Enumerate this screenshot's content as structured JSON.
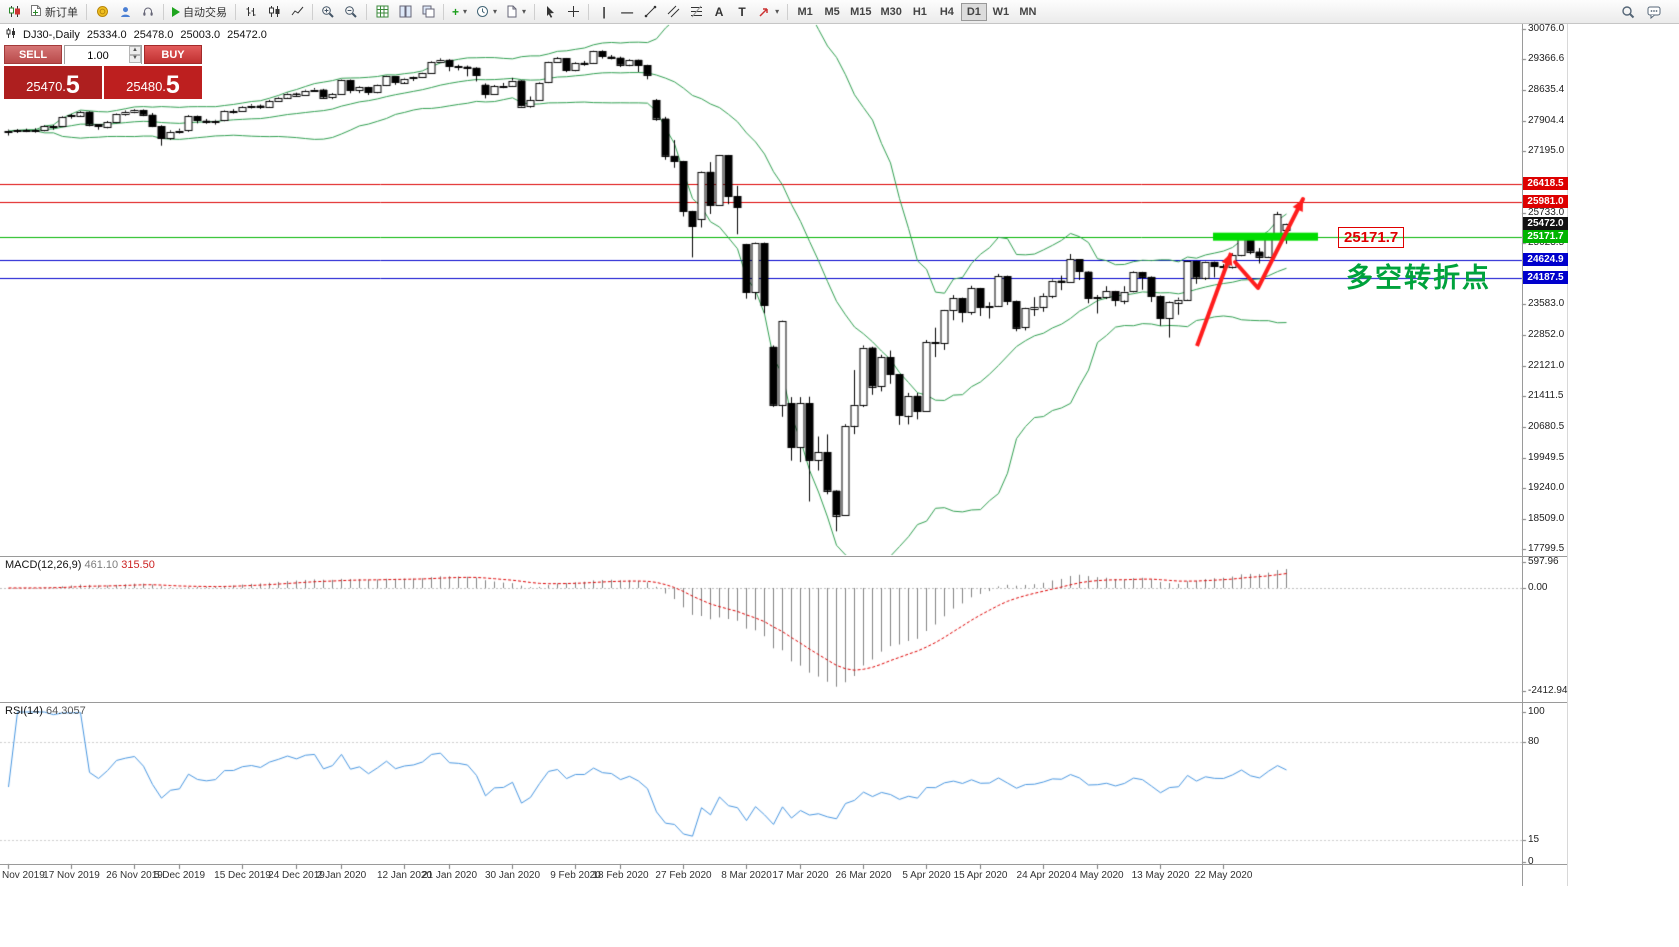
{
  "toolbar": {
    "new_order_label": "新订单",
    "autotrading_label": "自动交易",
    "timeframes": [
      "M1",
      "M5",
      "M15",
      "M30",
      "H1",
      "H4",
      "D1",
      "W1",
      "MN"
    ],
    "active_timeframe": "D1",
    "icon_names": [
      "chart-window-icon",
      "new-order-icon",
      "deposit-icon",
      "profile-icon",
      "support-icon",
      "autotrading-play-icon",
      "bar-chart-icon",
      "candlestick-chart-icon",
      "line-chart-icon",
      "zoom-in-icon",
      "zoom-out-icon",
      "indicators-grid-icon",
      "tile-windows-icon",
      "cascade-windows-icon",
      "new-chart-icon",
      "period-clock-icon",
      "templates-icon",
      "cursor-icon",
      "crosshair-icon",
      "vertical-line-icon",
      "horizontal-line-icon",
      "trendline-icon",
      "channel-icon",
      "fibonacci-icon",
      "text-icon",
      "text-label-icon",
      "shapes-arrow-icon",
      "search-icon",
      "chat-icon"
    ]
  },
  "chart_header": {
    "symbol_period": "DJ30-,Daily",
    "open": "25334.0",
    "high": "25478.0",
    "low": "25003.0",
    "close": "25472.0"
  },
  "one_click": {
    "sell_label": "SELL",
    "buy_label": "BUY",
    "volume": "1.00",
    "sell_price": "25470.5",
    "sell_price_main": "25470.",
    "sell_price_pip": "5",
    "buy_price": "25480.5",
    "buy_price_main": "25480.",
    "buy_price_pip": "5"
  },
  "indicators": {
    "macd": {
      "label": "MACD(12,26,9)",
      "value_main": "461.10",
      "value_signal": "315.50",
      "axis_ticks": [
        597.96,
        0,
        -2412.94
      ]
    },
    "rsi": {
      "label": "RSI(14)",
      "value": "64.3057",
      "axis_ticks": [
        100,
        80,
        15,
        0
      ],
      "levels": [
        80,
        15
      ]
    }
  },
  "chart_data": {
    "type": "candlestick",
    "title": "DJ30-,Daily",
    "timeframe": "D1",
    "ohlc_current": {
      "open": 25334.0,
      "high": 25478.0,
      "low": 25003.0,
      "close": 25472.0
    },
    "current_price": 25472.0,
    "price_ticks": [
      30076.0,
      29366.6,
      28635.4,
      27904.4,
      27195.0,
      25733.0,
      25023.5,
      23583.0,
      22852.0,
      22121.0,
      21411.5,
      20680.5,
      19949.5,
      19240.0,
      18509.0,
      17799.5
    ],
    "hlines": [
      {
        "price": 26418.5,
        "color": "#dd0000"
      },
      {
        "price": 25981.0,
        "color": "#dd0000"
      },
      {
        "price": 25171.7,
        "color": "#00b400",
        "highlight": true
      },
      {
        "price": 24624.9,
        "color": "#0000cc"
      },
      {
        "price": 24187.5,
        "color": "#0000cc"
      }
    ],
    "bollinger": {
      "period": 20,
      "deviations": 2,
      "color": "#2f9e4f"
    },
    "macd": {
      "fast": 12,
      "slow": 26,
      "signal": 9,
      "hist_color": "#828282",
      "signal_color": "#dd0000"
    },
    "rsi": {
      "period": 14,
      "color": "#4896e0"
    },
    "colors": {
      "up": "#ffffff",
      "down": "#000000",
      "outline": "#000000",
      "highlight": "#00dd00",
      "arrow": "#ff1c1c",
      "current_badge": "#111111"
    },
    "annotations": {
      "support_highlight": {
        "price": 25171.7,
        "label": "25171.7"
      },
      "turning_point": {
        "text": "多空转折点"
      }
    },
    "x_labels": [
      [
        "Nov 2019",
        0
      ],
      [
        "17 Nov 2019",
        7
      ],
      [
        "26 Nov 2019",
        14
      ],
      [
        "5 Dec 2019",
        19
      ],
      [
        "15 Dec 2019",
        26
      ],
      [
        "24 Dec 2019",
        32
      ],
      [
        "2 Jan 2020",
        37
      ],
      [
        "12 Jan 2020",
        44
      ],
      [
        "21 Jan 2020",
        49
      ],
      [
        "30 Jan 2020",
        56
      ],
      [
        "9 Feb 2020",
        63
      ],
      [
        "18 Feb 2020",
        68
      ],
      [
        "27 Feb 2020",
        75
      ],
      [
        "8 Mar 2020",
        82
      ],
      [
        "17 Mar 2020",
        88
      ],
      [
        "26 Mar 2020",
        95
      ],
      [
        "5 Apr 2020",
        102
      ],
      [
        "15 Apr 2020",
        108
      ],
      [
        "24 Apr 2020",
        115
      ],
      [
        "4 May 2020",
        121
      ],
      [
        "13 May 2020",
        128
      ],
      [
        "22 May 2020",
        135
      ]
    ],
    "candles": [
      [
        27650,
        27700,
        27560,
        27675
      ],
      [
        27675,
        27712,
        27620,
        27681
      ],
      [
        27681,
        27722,
        27640,
        27691
      ],
      [
        27691,
        27732,
        27628,
        27691
      ],
      [
        27691,
        27802,
        27660,
        27784
      ],
      [
        27784,
        27812,
        27698,
        27782
      ],
      [
        27782,
        28020,
        27758,
        28005
      ],
      [
        28005,
        28072,
        27958,
        28036
      ],
      [
        28036,
        28142,
        27998,
        28121
      ],
      [
        28121,
        28132,
        27778,
        27821
      ],
      [
        27821,
        27832,
        27698,
        27766
      ],
      [
        27766,
        27902,
        27730,
        27875
      ],
      [
        27875,
        28080,
        27848,
        28066
      ],
      [
        28066,
        28152,
        28028,
        28121
      ],
      [
        28121,
        28182,
        28088,
        28164
      ],
      [
        28164,
        28176,
        28018,
        28051
      ],
      [
        28051,
        28092,
        27758,
        27783
      ],
      [
        27783,
        27802,
        27320,
        27502
      ],
      [
        27502,
        27682,
        27458,
        27650
      ],
      [
        27650,
        27722,
        27608,
        27678
      ],
      [
        27678,
        28042,
        27648,
        28015
      ],
      [
        28015,
        28032,
        27848,
        27910
      ],
      [
        27910,
        27952,
        27838,
        27882
      ],
      [
        27882,
        27932,
        27818,
        27911
      ],
      [
        27911,
        28152,
        27898,
        28132
      ],
      [
        28132,
        28182,
        28078,
        28135
      ],
      [
        28135,
        28252,
        28118,
        28236
      ],
      [
        28236,
        28302,
        28198,
        28267
      ],
      [
        28267,
        28292,
        28188,
        28239
      ],
      [
        28239,
        28402,
        28218,
        28377
      ],
      [
        28377,
        28472,
        28358,
        28455
      ],
      [
        28455,
        28572,
        28438,
        28552
      ],
      [
        28552,
        28572,
        28498,
        28516
      ],
      [
        28516,
        28642,
        28508,
        28621
      ],
      [
        28621,
        28682,
        28608,
        28645
      ],
      [
        28645,
        28662,
        28428,
        28462
      ],
      [
        28462,
        28562,
        28418,
        28538
      ],
      [
        28538,
        28882,
        28530,
        28869
      ],
      [
        28869,
        28882,
        28558,
        28635
      ],
      [
        28635,
        28722,
        28562,
        28703
      ],
      [
        28703,
        28712,
        28518,
        28584
      ],
      [
        28584,
        28762,
        28558,
        28745
      ],
      [
        28745,
        28972,
        28728,
        28957
      ],
      [
        28957,
        28962,
        28758,
        28824
      ],
      [
        28824,
        28922,
        28788,
        28907
      ],
      [
        28907,
        28952,
        28848,
        28939
      ],
      [
        28939,
        29042,
        28918,
        29030
      ],
      [
        29030,
        29312,
        29018,
        29298
      ],
      [
        29298,
        29382,
        29278,
        29348
      ],
      [
        29348,
        29362,
        29078,
        29196
      ],
      [
        29196,
        29232,
        29098,
        29186
      ],
      [
        29186,
        29212,
        28958,
        29160
      ],
      [
        29160,
        29172,
        28838,
        28990
      ],
      [
        28760,
        28792,
        28438,
        28536
      ],
      [
        28536,
        28752,
        28518,
        28723
      ],
      [
        28723,
        28802,
        28678,
        28734
      ],
      [
        28734,
        28922,
        28718,
        28859
      ],
      [
        28859,
        28862,
        28248,
        28256
      ],
      [
        28256,
        28482,
        28218,
        28400
      ],
      [
        28400,
        28822,
        28388,
        28808
      ],
      [
        28808,
        29302,
        28798,
        29291
      ],
      [
        29291,
        29412,
        29278,
        29380
      ],
      [
        29380,
        29392,
        29058,
        29103
      ],
      [
        29103,
        29292,
        29078,
        29277
      ],
      [
        29277,
        29322,
        29208,
        29276
      ],
      [
        29276,
        29562,
        29268,
        29551
      ],
      [
        29551,
        29572,
        29378,
        29423
      ],
      [
        29423,
        29462,
        29358,
        29398
      ],
      [
        29398,
        29422,
        29178,
        29232
      ],
      [
        29232,
        29362,
        29198,
        29348
      ],
      [
        29348,
        29352,
        29058,
        29220
      ],
      [
        29220,
        29232,
        28888,
        28992
      ],
      [
        28400,
        28422,
        27908,
        27961
      ],
      [
        27961,
        28002,
        26988,
        27081
      ],
      [
        27081,
        27452,
        26798,
        26958
      ],
      [
        26958,
        26962,
        25648,
        25767
      ],
      [
        25767,
        25782,
        24682,
        25409
      ],
      [
        25590,
        26712,
        25388,
        26703
      ],
      [
        26703,
        26932,
        25708,
        25917
      ],
      [
        25917,
        27102,
        25908,
        27091
      ],
      [
        27091,
        27102,
        25938,
        26121
      ],
      [
        26121,
        26372,
        25228,
        25865
      ],
      [
        24992,
        25002,
        23708,
        23851
      ],
      [
        23851,
        25032,
        23688,
        25018
      ],
      [
        25018,
        25032,
        23358,
        23553
      ],
      [
        22572,
        22602,
        21152,
        21201
      ],
      [
        21201,
        23192,
        20918,
        23186
      ],
      [
        21232,
        21382,
        19882,
        20189
      ],
      [
        20189,
        21382,
        19848,
        21237
      ],
      [
        21237,
        21392,
        18918,
        19899
      ],
      [
        19899,
        20452,
        19648,
        20087
      ],
      [
        20087,
        20502,
        19088,
        19174
      ],
      [
        19174,
        19182,
        18213,
        18592
      ],
      [
        18592,
        20742,
        18588,
        20705
      ],
      [
        20705,
        22022,
        20508,
        21200
      ],
      [
        21200,
        22602,
        21148,
        22552
      ],
      [
        22552,
        22572,
        21438,
        21637
      ],
      [
        21637,
        22382,
        21518,
        22327
      ],
      [
        22327,
        22482,
        21698,
        21917
      ],
      [
        21917,
        21922,
        20728,
        20944
      ],
      [
        20944,
        21482,
        20738,
        21413
      ],
      [
        21413,
        21482,
        20858,
        21053
      ],
      [
        21053,
        22732,
        21048,
        22680
      ],
      [
        22680,
        23022,
        22328,
        22654
      ],
      [
        22654,
        23442,
        22498,
        23434
      ],
      [
        23434,
        23792,
        23198,
        23719
      ],
      [
        23719,
        23732,
        23148,
        23390
      ],
      [
        23390,
        24012,
        23328,
        23950
      ],
      [
        23950,
        23962,
        23298,
        23504
      ],
      [
        23504,
        23622,
        23238,
        23538
      ],
      [
        23538,
        24292,
        23528,
        24242
      ],
      [
        24242,
        24252,
        23558,
        23651
      ],
      [
        23651,
        23662,
        22938,
        23019
      ],
      [
        23019,
        23492,
        22958,
        23476
      ],
      [
        23476,
        23742,
        23298,
        23515
      ],
      [
        23515,
        23832,
        23398,
        23775
      ],
      [
        23775,
        24162,
        23718,
        24134
      ],
      [
        24134,
        24252,
        23908,
        24102
      ],
      [
        24102,
        24762,
        24098,
        24634
      ],
      [
        24634,
        24642,
        24148,
        24346
      ],
      [
        24346,
        24352,
        23598,
        23724
      ],
      [
        23724,
        23792,
        23358,
        23750
      ],
      [
        23750,
        24002,
        23698,
        23883
      ],
      [
        23883,
        23892,
        23528,
        23665
      ],
      [
        23665,
        24002,
        23578,
        23876
      ],
      [
        23876,
        24352,
        23858,
        24331
      ],
      [
        24331,
        24342,
        23918,
        24222
      ],
      [
        24222,
        24232,
        23628,
        23765
      ],
      [
        23765,
        23782,
        23068,
        23248
      ],
      [
        23248,
        23642,
        22789,
        23625
      ],
      [
        23625,
        23732,
        23328,
        23685
      ],
      [
        23685,
        24602,
        23678,
        24597
      ],
      [
        24597,
        24602,
        24058,
        24207
      ],
      [
        24207,
        24582,
        24148,
        24576
      ],
      [
        24576,
        24582,
        24208,
        24474
      ],
      [
        24474,
        24522,
        24188,
        24465
      ],
      [
        24465,
        24782,
        24418,
        24740
      ],
      [
        24740,
        25176,
        24710,
        25140
      ],
      [
        25140,
        25162,
        24758,
        24820
      ],
      [
        24820,
        24902,
        24538,
        24700
      ],
      [
        24700,
        25252,
        24688,
        25210
      ],
      [
        25210,
        25758,
        25168,
        25700
      ],
      [
        25334,
        25478,
        25003,
        25472
      ]
    ]
  }
}
